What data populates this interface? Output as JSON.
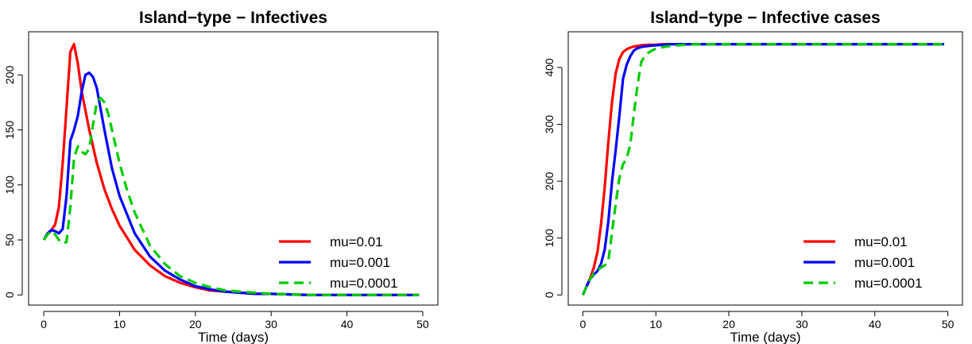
{
  "chart_data": [
    {
      "type": "line",
      "title": "Island−type − Infectives",
      "xlabel": "Time (days)",
      "ylabel": "",
      "xlim": [
        0,
        50
      ],
      "ylim": [
        0,
        230
      ],
      "x_ticks": [
        0,
        10,
        20,
        30,
        40,
        50
      ],
      "y_ticks": [
        0,
        50,
        100,
        150,
        200
      ],
      "grid": false,
      "legend_position": "bottom-right",
      "series": [
        {
          "name": "mu=0.01",
          "color": "#ff0000",
          "dash": "solid",
          "x": [
            0,
            0.5,
            1,
            1.5,
            2,
            2.5,
            3,
            3.5,
            4,
            4.5,
            5,
            6,
            7,
            8,
            9,
            10,
            12,
            14,
            16,
            18,
            20,
            22,
            24,
            26,
            28,
            30,
            35,
            40,
            45,
            49.5
          ],
          "y": [
            50,
            55,
            59,
            64,
            80,
            120,
            170,
            221,
            228,
            210,
            185,
            150,
            120,
            96,
            78,
            63,
            41,
            27,
            17,
            11,
            7,
            4,
            3,
            2,
            1,
            1,
            0,
            0,
            0,
            0
          ]
        },
        {
          "name": "mu=0.001",
          "color": "#0000ff",
          "dash": "solid",
          "x": [
            0,
            0.5,
            1,
            1.5,
            2,
            2.5,
            3,
            3.5,
            4,
            4.5,
            5,
            5.5,
            6,
            6.5,
            7,
            8,
            9,
            10,
            12,
            14,
            16,
            18,
            20,
            22,
            24,
            26,
            28,
            30,
            35,
            40,
            45,
            49.5
          ],
          "y": [
            50,
            56,
            59,
            58,
            56,
            60,
            90,
            140,
            150,
            163,
            185,
            200,
            202,
            198,
            188,
            150,
            115,
            90,
            56,
            35,
            22,
            14,
            8,
            5,
            3,
            2,
            1,
            1,
            0,
            0,
            0,
            0
          ]
        },
        {
          "name": "mu=0.0001",
          "color": "#00cc00",
          "dash": "dashed",
          "x": [
            0,
            0.5,
            1,
            1.5,
            2,
            2.5,
            3,
            3.5,
            4,
            4.5,
            5,
            5.5,
            6,
            6.5,
            7,
            7.5,
            8,
            8.5,
            9,
            10,
            11,
            12,
            14,
            16,
            18,
            20,
            22,
            24,
            26,
            28,
            30,
            35,
            40,
            45,
            49.5
          ],
          "y": [
            50,
            55,
            58,
            55,
            50,
            47,
            48,
            80,
            125,
            135,
            130,
            128,
            133,
            155,
            175,
            179,
            175,
            165,
            150,
            120,
            95,
            75,
            45,
            28,
            17,
            11,
            7,
            4,
            3,
            2,
            1,
            0,
            0,
            0,
            0
          ]
        }
      ]
    },
    {
      "type": "line",
      "title": "Island−type − Infective cases",
      "xlabel": "Time (days)",
      "ylabel": "",
      "xlim": [
        0,
        50
      ],
      "ylim": [
        0,
        445
      ],
      "x_ticks": [
        0,
        10,
        20,
        30,
        40,
        50
      ],
      "y_ticks": [
        0,
        100,
        200,
        300,
        400
      ],
      "grid": false,
      "legend_position": "bottom-right",
      "series": [
        {
          "name": "mu=0.01",
          "color": "#ff0000",
          "dash": "solid",
          "x": [
            0,
            0.5,
            1,
            1.5,
            2,
            2.5,
            3,
            3.5,
            4,
            4.5,
            5,
            5.5,
            6,
            6.5,
            7,
            7.5,
            8,
            9,
            10,
            11,
            12,
            14,
            16,
            20,
            30,
            40,
            49.5
          ],
          "y": [
            0,
            15,
            30,
            48,
            75,
            125,
            190,
            270,
            340,
            390,
            415,
            427,
            432,
            435,
            437,
            438,
            439,
            440,
            440,
            441,
            441,
            441,
            441,
            441,
            441,
            441,
            441
          ]
        },
        {
          "name": "mu=0.001",
          "color": "#0000ff",
          "dash": "solid",
          "x": [
            0,
            0.5,
            1,
            1.5,
            2,
            2.5,
            3,
            3.5,
            4,
            4.5,
            5,
            5.5,
            6,
            6.5,
            7,
            7.5,
            8,
            9,
            10,
            11,
            12,
            14,
            16,
            20,
            30,
            40,
            49.5
          ],
          "y": [
            0,
            15,
            28,
            36,
            42,
            55,
            80,
            130,
            200,
            255,
            315,
            380,
            405,
            420,
            430,
            434,
            436,
            438,
            439,
            440,
            441,
            441,
            441,
            441,
            441,
            441,
            441
          ]
        },
        {
          "name": "mu=0.0001",
          "color": "#00cc00",
          "dash": "dashed",
          "x": [
            0,
            0.5,
            1,
            1.5,
            2,
            2.5,
            3,
            3.5,
            4,
            4.5,
            5,
            5.5,
            6,
            6.5,
            7,
            7.5,
            8,
            8.5,
            9,
            9.5,
            10,
            11,
            12,
            14,
            16,
            20,
            30,
            40,
            49.5
          ],
          "y": [
            0,
            15,
            28,
            38,
            44,
            48,
            52,
            60,
            110,
            160,
            205,
            230,
            240,
            265,
            320,
            370,
            410,
            420,
            426,
            430,
            433,
            436,
            438,
            440,
            441,
            441,
            441,
            441,
            441
          ]
        }
      ]
    }
  ]
}
